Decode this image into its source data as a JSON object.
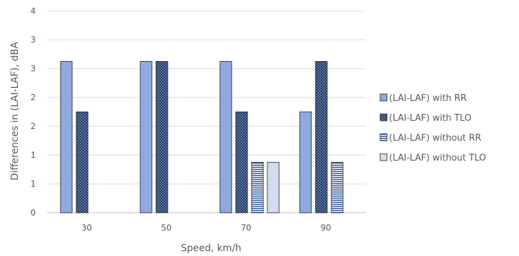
{
  "chart_data": {
    "type": "bar",
    "title": "",
    "xlabel": "Speed, km/h",
    "ylabel": "Differences in (LAI-LAF), dBA",
    "categories": [
      "30",
      "50",
      "70",
      "90"
    ],
    "ylim": [
      0,
      4
    ],
    "y_ticks": [
      "0",
      "1",
      "1",
      "2",
      "2",
      "3",
      "3",
      "4"
    ],
    "grid": true,
    "legend_position": "right",
    "series": [
      {
        "name": "(LAI-LAF) with RR",
        "values": [
          3,
          3,
          3,
          2
        ],
        "color": "#8faadc",
        "pattern": "solid"
      },
      {
        "name": "(LAI-LAF) with TLO",
        "values": [
          2,
          3,
          2,
          3
        ],
        "color": "#1f3864",
        "pattern": "dots"
      },
      {
        "name": "(LAI-LAF) without RR",
        "values": [
          0,
          0,
          1,
          1
        ],
        "color": "#2f5597",
        "pattern": "hlines"
      },
      {
        "name": "(LAI-LAF) without TLO",
        "values": [
          0,
          0,
          1,
          0
        ],
        "color": "#b4c7e7",
        "pattern": "light"
      }
    ]
  }
}
